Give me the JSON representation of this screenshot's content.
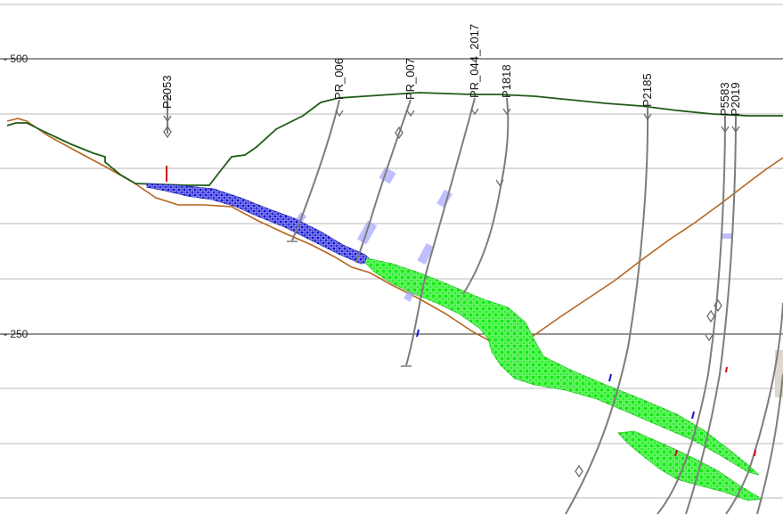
{
  "colors": {
    "topography": "#1e5c16",
    "base_contact": "#b5651d",
    "blue_unit": "#1010d8",
    "green_unit": "#12ea12",
    "wells": "#7d7d7d"
  },
  "axis": {
    "labels": [
      {
        "text": "- 500",
        "value": 500
      },
      {
        "text": "- 250",
        "value": 250
      }
    ]
  },
  "wells": [
    {
      "id": "P2053"
    },
    {
      "id": "PR_006"
    },
    {
      "id": "PR_007"
    },
    {
      "id": "PR_044_2017"
    },
    {
      "id": "P1818"
    },
    {
      "id": "P2185"
    },
    {
      "id": "P5583"
    },
    {
      "id": "P2019"
    }
  ]
}
